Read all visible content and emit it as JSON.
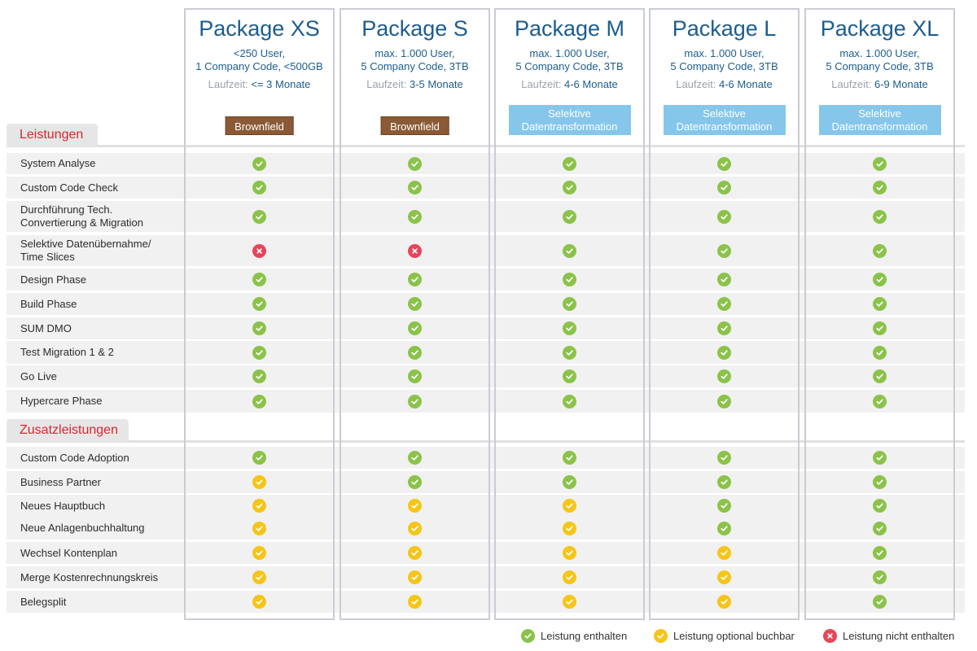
{
  "packages": [
    {
      "name": "Package XS",
      "spec": "<250 User,\n1 Company Code, <500GB",
      "runtime_label": "Laufzeit:",
      "runtime_value": "<= 3 Monate",
      "badge": "Brownfield",
      "badge_type": "brown"
    },
    {
      "name": "Package S",
      "spec": "max. 1.000 User,\n5 Company Code, 3TB",
      "runtime_label": "Laufzeit:",
      "runtime_value": "3-5 Monate",
      "badge": "Brownfield",
      "badge_type": "brown"
    },
    {
      "name": "Package M",
      "spec": "max. 1.000 User,\n5 Company Code, 3TB",
      "runtime_label": "Laufzeit:",
      "runtime_value": "4-6 Monate",
      "badge": "Selektive\nDatentransformation",
      "badge_type": "blue"
    },
    {
      "name": "Package L",
      "spec": "max. 1.000 User,\n5 Company Code, 3TB",
      "runtime_label": "Laufzeit:",
      "runtime_value": "4-6 Monate",
      "badge": "Selektive\nDatentransformation",
      "badge_type": "blue"
    },
    {
      "name": "Package XL",
      "spec": "max. 1.000 User,\n5 Company Code, 3TB",
      "runtime_label": "Laufzeit:",
      "runtime_value": "6-9 Monate",
      "badge": "Selektive\nDatentransformation",
      "badge_type": "blue"
    }
  ],
  "sections": [
    {
      "title": "Leistungen",
      "rows": [
        {
          "label": "System Analyse",
          "status": [
            "included",
            "included",
            "included",
            "included",
            "included"
          ]
        },
        {
          "label": "Custom Code Check",
          "status": [
            "included",
            "included",
            "included",
            "included",
            "included"
          ]
        },
        {
          "label": "Durchführung Tech.\nConvertierung & Migration",
          "status": [
            "included",
            "included",
            "included",
            "included",
            "included"
          ]
        },
        {
          "label": "Selektive Datenübernahme/\nTime Slices",
          "status": [
            "excluded",
            "excluded",
            "included",
            "included",
            "included"
          ]
        },
        {
          "label": "Design Phase",
          "status": [
            "included",
            "included",
            "included",
            "included",
            "included"
          ]
        },
        {
          "label": "Build Phase",
          "status": [
            "included",
            "included",
            "included",
            "included",
            "included"
          ]
        },
        {
          "label": "SUM DMO",
          "status": [
            "included",
            "included",
            "included",
            "included",
            "included"
          ]
        },
        {
          "label": "Test Migration 1 & 2",
          "status": [
            "included",
            "included",
            "included",
            "included",
            "included"
          ]
        },
        {
          "label": "Go Live",
          "status": [
            "included",
            "included",
            "included",
            "included",
            "included"
          ]
        },
        {
          "label": "Hypercare Phase",
          "status": [
            "included",
            "included",
            "included",
            "included",
            "included"
          ]
        }
      ]
    },
    {
      "title": "Zusatzleistungen",
      "rows": [
        {
          "label": "Custom Code Adoption",
          "status": [
            "included",
            "included",
            "included",
            "included",
            "included"
          ]
        },
        {
          "label": "Business Partner",
          "status": [
            "optional",
            "included",
            "included",
            "included",
            "included"
          ]
        },
        {
          "label": "Neues Hauptbuch",
          "status": [
            "optional",
            "optional",
            "optional",
            "included",
            "included"
          ]
        },
        {
          "label": "Neue Anlagenbuchhaltung",
          "status": [
            "optional",
            "optional",
            "optional",
            "included",
            "included"
          ]
        },
        {
          "label": "Wechsel Kontenplan",
          "status": [
            "optional",
            "optional",
            "optional",
            "optional",
            "included"
          ]
        },
        {
          "label": "Merge Kostenrechnungskreis",
          "status": [
            "optional",
            "optional",
            "optional",
            "optional",
            "included"
          ]
        },
        {
          "label": "Belegsplit",
          "status": [
            "optional",
            "optional",
            "optional",
            "optional",
            "included"
          ]
        }
      ]
    }
  ],
  "legend": {
    "included": "Leistung enthalten",
    "optional": "Leistung optional buchbar",
    "excluded": "Leistung nicht enthalten"
  },
  "colors": {
    "included": "#8bc34a",
    "optional": "#f5c518",
    "excluded": "#e8445a",
    "title_blue": "#1c5d8e",
    "section_red": "#d7262e",
    "badge_brown": "#8a5a36",
    "badge_blue": "#86c6ea"
  },
  "icons": {
    "included": "check-icon",
    "optional": "check-icon",
    "excluded": "x-icon"
  }
}
